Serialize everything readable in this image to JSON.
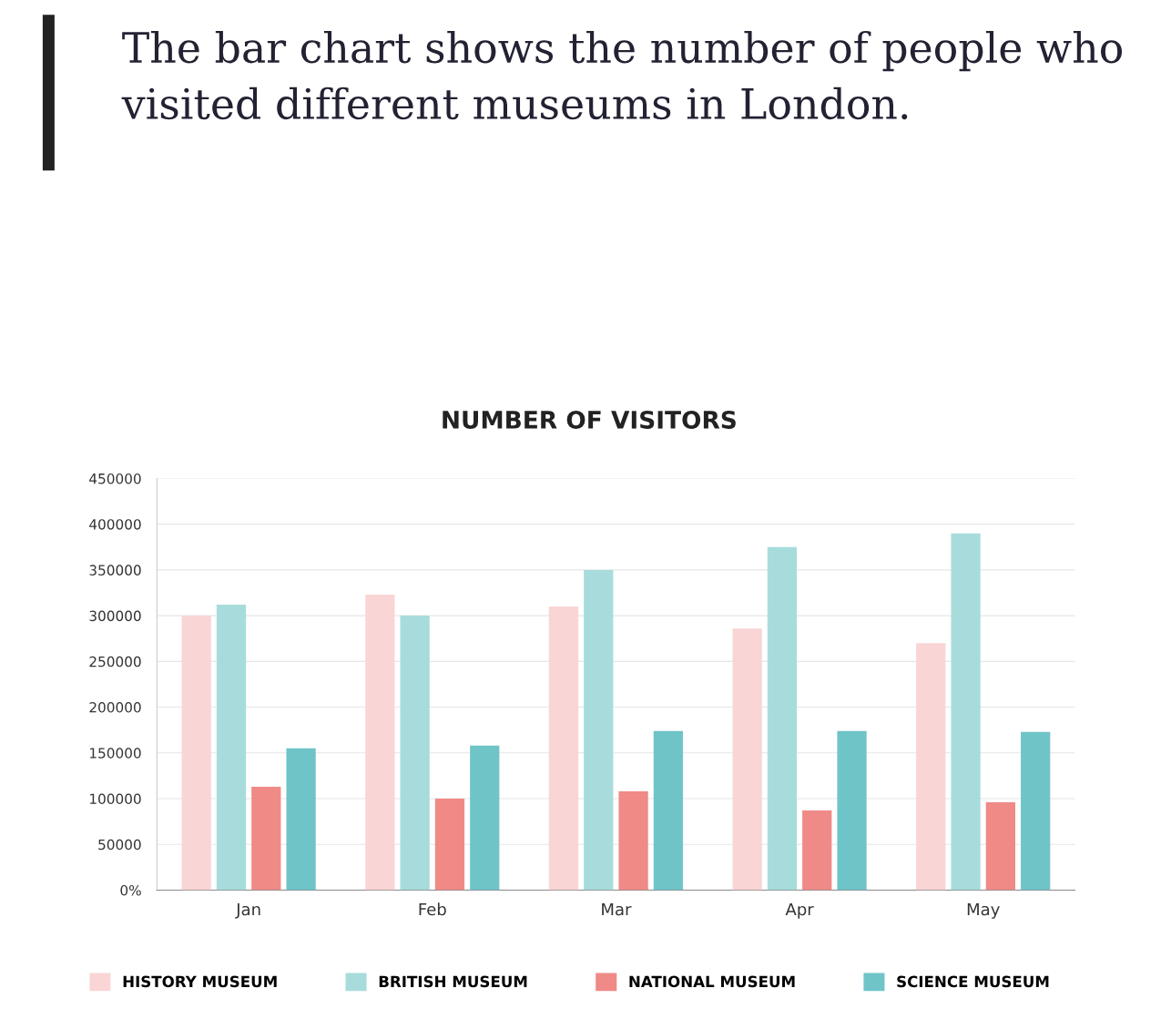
{
  "chart_data": {
    "type": "bar",
    "title": "The bar chart shows the number of people who visited different museums in London.",
    "subtitle": "NUMBER OF VISITORS",
    "categories": [
      "Jan",
      "Feb",
      "Mar",
      "Apr",
      "May"
    ],
    "series": [
      {
        "name": "HISTORY MUSEUM",
        "color": "#f9d5d5",
        "values": [
          300000,
          323000,
          310000,
          286000,
          270000
        ]
      },
      {
        "name": "BRITISH MUSEUM",
        "color": "#a8dcdc",
        "values": [
          312000,
          300000,
          350000,
          375000,
          390000
        ]
      },
      {
        "name": "NATIONAL MUSEUM",
        "color": "#ef8a87",
        "values": [
          113000,
          100000,
          108000,
          87000,
          96000
        ]
      },
      {
        "name": "SCIENCE MUSEUM",
        "color": "#6fc4c8",
        "values": [
          155000,
          158000,
          174000,
          174000,
          173000
        ]
      }
    ],
    "ylim": [
      0,
      450000
    ],
    "yticks": [
      {
        "value": 0,
        "label": "0%"
      },
      50000,
      100000,
      150000,
      200000,
      250000,
      300000,
      350000,
      400000,
      450000
    ],
    "grid": "y",
    "legend": "bottom"
  }
}
